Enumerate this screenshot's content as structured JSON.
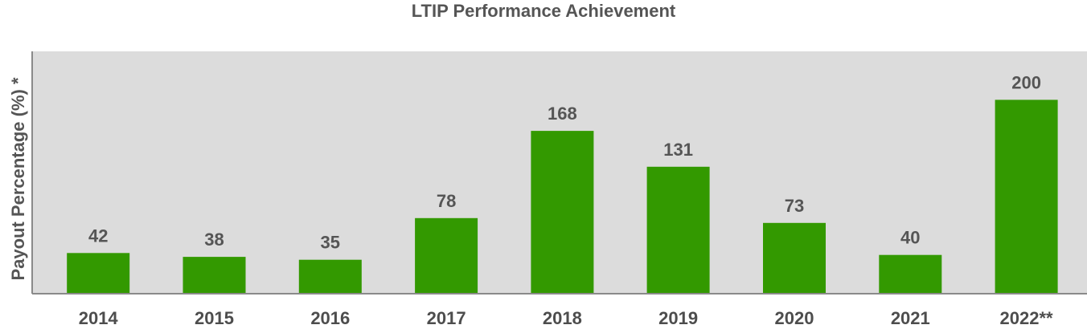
{
  "chart_data": {
    "type": "bar",
    "title": "LTIP Performance Achievement",
    "xlabel": "",
    "ylabel": "Payout  Percentage (%) *",
    "categories": [
      "2014",
      "2015",
      "2016",
      "2017",
      "2018",
      "2019",
      "2020",
      "2021",
      "2022**"
    ],
    "values": [
      42,
      38,
      35,
      78,
      168,
      131,
      73,
      40,
      200
    ],
    "value_labels": [
      "42",
      "38",
      "35",
      "78",
      "168",
      "131",
      "73",
      "40",
      "200"
    ],
    "ylim": [
      0,
      250
    ],
    "grid": false,
    "legend": "none",
    "colors": {
      "bar": "#339900",
      "plot_background": "#dcdcdc",
      "axis": "#8a8a8a"
    }
  }
}
